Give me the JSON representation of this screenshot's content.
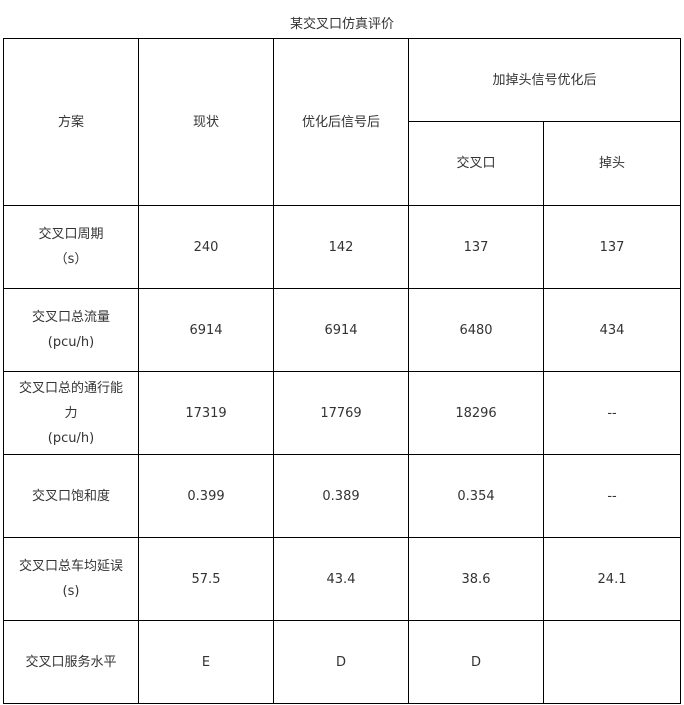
{
  "title": "某交叉口仿真评价",
  "header": {
    "scheme": "方案",
    "current": "现状",
    "optimized": "优化后信号后",
    "uturn_group": "加掉头信号优化后",
    "intersection": "交叉口",
    "uturn": "掉头"
  },
  "rows": [
    {
      "label": [
        "交叉口周期",
        "（s）"
      ],
      "values": [
        "240",
        "142",
        "137",
        "137"
      ]
    },
    {
      "label": [
        "交叉口总流量",
        "(pcu/h)"
      ],
      "values": [
        "6914",
        "6914",
        "6480",
        "434"
      ]
    },
    {
      "label": [
        "交叉口总的通行能",
        "力",
        "(pcu/h)"
      ],
      "values": [
        "17319",
        "17769",
        "18296",
        "--"
      ]
    },
    {
      "label": [
        "交叉口饱和度"
      ],
      "values": [
        "0.399",
        "0.389",
        "0.354",
        "--"
      ]
    },
    {
      "label": [
        "交叉口总车均延误",
        "(s)"
      ],
      "values": [
        "57.5",
        "43.4",
        "38.6",
        "24.1"
      ]
    },
    {
      "label": [
        "交叉口服务水平"
      ],
      "values": [
        "E",
        "D",
        "D",
        ""
      ]
    }
  ]
}
